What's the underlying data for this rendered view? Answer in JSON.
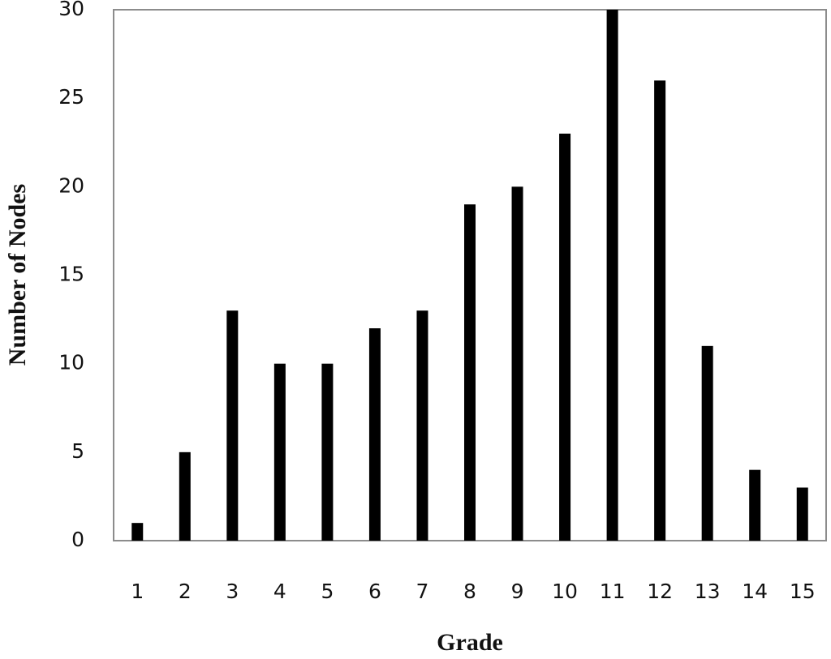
{
  "chart_data": {
    "type": "bar",
    "x_label": "Grade",
    "y_label": "Number of Nodes",
    "categories": [
      "1",
      "2",
      "3",
      "4",
      "5",
      "6",
      "7",
      "8",
      "9",
      "10",
      "11",
      "12",
      "13",
      "14",
      "15"
    ],
    "values": [
      1,
      5,
      13,
      10,
      10,
      12,
      13,
      19,
      20,
      23,
      30,
      26,
      11,
      4,
      3
    ],
    "color": "#000000",
    "ylim": [
      0,
      30
    ],
    "yticks": [
      0,
      5,
      10,
      15,
      20,
      25,
      30
    ],
    "grid": false
  }
}
